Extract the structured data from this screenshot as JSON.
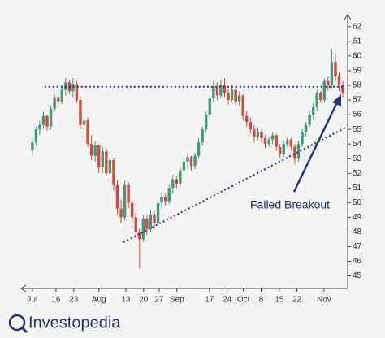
{
  "chart_data": {
    "type": "candlestick",
    "x": [
      0,
      1,
      2,
      3,
      4,
      5,
      6,
      7,
      8,
      9,
      10,
      11,
      12,
      13,
      14,
      15,
      16,
      17,
      18,
      19,
      20,
      21,
      22,
      23,
      24,
      25,
      26,
      27,
      28,
      29,
      30,
      31,
      32,
      33,
      34,
      35,
      36,
      37,
      38,
      39,
      40,
      41,
      42,
      43,
      44,
      45,
      46,
      47,
      48,
      49,
      50,
      51,
      52,
      53,
      54,
      55,
      56,
      57,
      58,
      59,
      60,
      61,
      62,
      63,
      64,
      65,
      66,
      67,
      68,
      69,
      70,
      71,
      72,
      73,
      74,
      75,
      76,
      77,
      78,
      79,
      80,
      81,
      82,
      83,
      84
    ],
    "ohlc": [
      [
        53.6,
        54.4,
        53.2,
        54.1
      ],
      [
        54.1,
        55.2,
        53.9,
        55.0
      ],
      [
        55.0,
        55.6,
        54.6,
        55.3
      ],
      [
        55.3,
        56.2,
        55.0,
        55.9
      ],
      [
        55.9,
        56.0,
        54.9,
        55.2
      ],
      [
        55.2,
        56.6,
        55.0,
        56.4
      ],
      [
        56.4,
        57.4,
        56.2,
        57.2
      ],
      [
        57.2,
        57.6,
        56.6,
        56.9
      ],
      [
        56.9,
        58.0,
        56.7,
        57.7
      ],
      [
        57.7,
        58.5,
        57.3,
        58.2
      ],
      [
        58.2,
        58.4,
        57.4,
        57.6
      ],
      [
        57.6,
        58.5,
        57.2,
        58.1
      ],
      [
        58.1,
        58.3,
        56.8,
        57.0
      ],
      [
        57.0,
        57.2,
        55.0,
        55.3
      ],
      [
        55.3,
        56.0,
        54.6,
        55.6
      ],
      [
        55.6,
        55.8,
        53.8,
        54.0
      ],
      [
        54.0,
        54.6,
        52.9,
        53.2
      ],
      [
        53.2,
        54.2,
        52.8,
        53.9
      ],
      [
        53.9,
        54.0,
        52.0,
        52.4
      ],
      [
        52.4,
        53.8,
        52.0,
        53.5
      ],
      [
        53.5,
        53.7,
        51.8,
        52.0
      ],
      [
        52.0,
        53.2,
        51.6,
        52.9
      ],
      [
        52.9,
        53.0,
        50.8,
        51.2
      ],
      [
        51.2,
        51.5,
        49.2,
        49.6
      ],
      [
        49.6,
        50.2,
        48.6,
        49.0
      ],
      [
        49.0,
        51.5,
        48.8,
        51.2
      ],
      [
        51.2,
        51.4,
        49.6,
        50.0
      ],
      [
        50.0,
        50.2,
        48.6,
        49.0
      ],
      [
        49.0,
        49.3,
        47.6,
        48.0
      ],
      [
        48.0,
        48.2,
        45.5,
        47.5
      ],
      [
        47.5,
        49.2,
        47.3,
        48.9
      ],
      [
        48.9,
        49.2,
        47.8,
        48.2
      ],
      [
        48.2,
        49.5,
        48.0,
        49.2
      ],
      [
        49.2,
        49.4,
        48.2,
        48.6
      ],
      [
        48.6,
        50.2,
        48.4,
        50.0
      ],
      [
        50.0,
        50.7,
        49.6,
        50.4
      ],
      [
        50.4,
        50.6,
        49.8,
        50.1
      ],
      [
        50.1,
        51.2,
        49.9,
        51.0
      ],
      [
        51.0,
        51.9,
        50.6,
        51.6
      ],
      [
        51.6,
        51.8,
        51.0,
        51.3
      ],
      [
        51.3,
        52.4,
        51.1,
        52.2
      ],
      [
        52.2,
        53.0,
        52.0,
        52.8
      ],
      [
        52.8,
        53.4,
        52.4,
        53.1
      ],
      [
        53.1,
        53.2,
        52.2,
        52.5
      ],
      [
        52.5,
        53.4,
        52.3,
        53.2
      ],
      [
        53.2,
        54.4,
        53.0,
        54.1
      ],
      [
        54.1,
        55.2,
        53.9,
        55.0
      ],
      [
        55.0,
        56.2,
        54.8,
        56.0
      ],
      [
        56.0,
        57.4,
        55.8,
        57.1
      ],
      [
        57.1,
        58.3,
        56.8,
        57.9
      ],
      [
        57.9,
        58.2,
        57.0,
        57.3
      ],
      [
        57.3,
        58.4,
        57.1,
        58.0
      ],
      [
        58.0,
        58.5,
        57.2,
        57.5
      ],
      [
        57.5,
        57.7,
        56.7,
        57.0
      ],
      [
        57.0,
        58.0,
        56.8,
        57.7
      ],
      [
        57.7,
        57.9,
        56.6,
        56.9
      ],
      [
        56.9,
        57.6,
        56.6,
        57.3
      ],
      [
        57.3,
        57.4,
        55.6,
        55.9
      ],
      [
        55.9,
        56.3,
        55.2,
        55.5
      ],
      [
        55.5,
        55.8,
        54.7,
        55.0
      ],
      [
        55.0,
        55.3,
        54.1,
        54.5
      ],
      [
        54.5,
        55.1,
        54.2,
        54.8
      ],
      [
        54.8,
        55.0,
        54.1,
        54.4
      ],
      [
        54.4,
        54.6,
        53.7,
        54.0
      ],
      [
        54.0,
        54.5,
        53.8,
        54.3
      ],
      [
        54.3,
        54.8,
        54.0,
        54.6
      ],
      [
        54.6,
        54.7,
        53.6,
        53.8
      ],
      [
        53.8,
        54.0,
        53.0,
        53.3
      ],
      [
        53.3,
        54.2,
        53.1,
        54.0
      ],
      [
        54.0,
        54.5,
        53.8,
        54.3
      ],
      [
        54.3,
        54.4,
        53.6,
        53.8
      ],
      [
        53.8,
        54.0,
        52.6,
        53.0
      ],
      [
        53.0,
        54.2,
        52.8,
        54.0
      ],
      [
        54.0,
        55.0,
        53.8,
        54.8
      ],
      [
        54.8,
        55.5,
        54.5,
        55.3
      ],
      [
        55.3,
        56.2,
        55.1,
        56.0
      ],
      [
        56.0,
        56.8,
        55.7,
        56.5
      ],
      [
        56.5,
        57.7,
        56.3,
        57.5
      ],
      [
        57.5,
        57.6,
        56.8,
        57.0
      ],
      [
        57.0,
        58.5,
        56.8,
        58.3
      ],
      [
        58.3,
        58.6,
        57.6,
        58.0
      ],
      [
        58.0,
        60.5,
        57.8,
        59.6
      ],
      [
        59.6,
        60.2,
        58.3,
        58.6
      ],
      [
        58.6,
        58.9,
        57.6,
        58.0
      ],
      [
        58.0,
        58.3,
        57.2,
        57.5
      ]
    ],
    "up_color": "#3e9a78",
    "down_color": "#d9463f",
    "xlim": [
      -1.5,
      85.3
    ],
    "xticks": [
      {
        "value": 0,
        "label": "Jul"
      },
      {
        "value": 6.4,
        "label": "16"
      },
      {
        "value": 11.2,
        "label": "23"
      },
      {
        "value": 18,
        "label": "Aug"
      },
      {
        "value": 25.3,
        "label": "13"
      },
      {
        "value": 30.1,
        "label": "20"
      },
      {
        "value": 34.3,
        "label": "27"
      },
      {
        "value": 39.1,
        "label": "Sep"
      },
      {
        "value": 47.9,
        "label": "17"
      },
      {
        "value": 52.7,
        "label": "24"
      },
      {
        "value": 57.1,
        "label": "Oct"
      },
      {
        "value": 61.9,
        "label": "8"
      },
      {
        "value": 66.8,
        "label": "15"
      },
      {
        "value": 71.6,
        "label": "22"
      },
      {
        "value": 78.9,
        "label": "Nov"
      }
    ],
    "ylim": [
      44.2,
      62.6
    ],
    "yticks": [
      45,
      46,
      47,
      48,
      49,
      50,
      51,
      52,
      53,
      54,
      55,
      56,
      57,
      58,
      59,
      60,
      61,
      62
    ],
    "trendlines": [
      {
        "x": [
          3.3,
          84.6
        ],
        "y": [
          57.9,
          57.9
        ]
      },
      {
        "x": [
          24.6,
          84.6
        ],
        "y": [
          47.3,
          55.1
        ]
      }
    ],
    "line_color": "#25358a",
    "annotation": "Failed Breakout"
  },
  "brand": "Investopedia"
}
